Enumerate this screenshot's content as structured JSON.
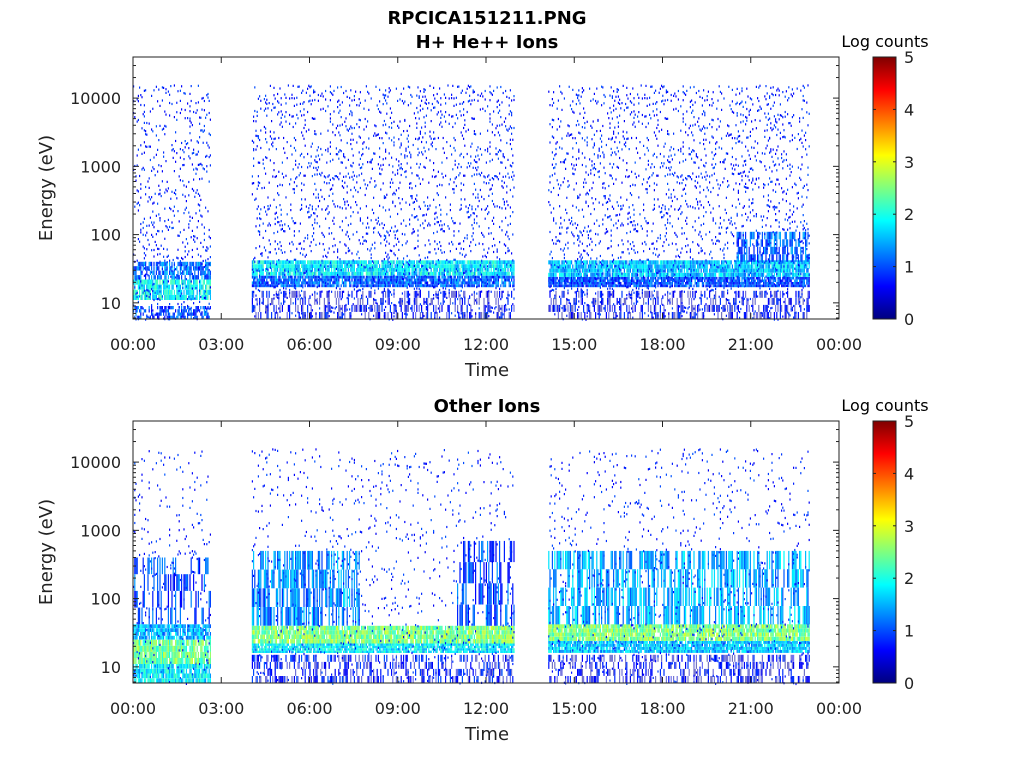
{
  "figure": {
    "title": "RPCICA151211.PNG"
  },
  "colors": {
    "colormap": [
      "#00007f",
      "#0000ff",
      "#007fff",
      "#00ffff",
      "#7fff7f",
      "#ffff00",
      "#ff7f00",
      "#ff0000",
      "#7f0000"
    ]
  },
  "chart_data": [
    {
      "type": "heatmap",
      "title": "H+ He++ Ions",
      "xlabel": "Time",
      "ylabel": "Energy (eV)",
      "xticks": [
        "00:00",
        "03:00",
        "06:00",
        "09:00",
        "12:00",
        "15:00",
        "18:00",
        "21:00",
        "00:00"
      ],
      "xlim_hours": [
        0,
        24
      ],
      "yticks": [
        "10",
        "100",
        "1000",
        "10000"
      ],
      "yscale": "log",
      "ylim_eV": [
        5.8,
        40000
      ],
      "colorbar": {
        "label": "Log counts",
        "ticks": [
          "0",
          "1",
          "2",
          "3",
          "4",
          "5"
        ],
        "range": [
          0,
          5
        ]
      },
      "data_gaps_hours": [
        [
          2.65,
          4.0
        ],
        [
          12.95,
          14.1
        ]
      ],
      "data_end_hour": 23.0,
      "bands": [
        {
          "t": [
            0.0,
            2.65
          ],
          "e": [
            5.8,
            9
          ],
          "level": 1.0,
          "density": 0.55
        },
        {
          "t": [
            0.0,
            2.65
          ],
          "e": [
            11,
            22
          ],
          "level": 1.9,
          "density": 0.8
        },
        {
          "t": [
            0.0,
            2.65
          ],
          "e": [
            22,
            40
          ],
          "level": 1.2,
          "density": 0.7
        },
        {
          "t": [
            4.0,
            12.95
          ],
          "e": [
            5.8,
            15
          ],
          "level": 0.5,
          "density": 0.35
        },
        {
          "t": [
            4.0,
            12.95
          ],
          "e": [
            17,
            25
          ],
          "level": 1.1,
          "density": 0.85
        },
        {
          "t": [
            4.0,
            12.95
          ],
          "e": [
            25,
            42
          ],
          "level": 1.8,
          "density": 0.9
        },
        {
          "t": [
            14.1,
            23.0
          ],
          "e": [
            5.8,
            15
          ],
          "level": 0.5,
          "density": 0.35
        },
        {
          "t": [
            14.1,
            23.0
          ],
          "e": [
            17,
            24
          ],
          "level": 1.0,
          "density": 0.85
        },
        {
          "t": [
            14.1,
            23.0
          ],
          "e": [
            24,
            42
          ],
          "level": 1.6,
          "density": 0.9
        },
        {
          "t": [
            20.5,
            23.0
          ],
          "e": [
            40,
            110
          ],
          "level": 1.1,
          "density": 0.55
        }
      ],
      "scatter_level": 0.8,
      "scatter_density": 0.22,
      "scatter_emax": 16000
    },
    {
      "type": "heatmap",
      "title": "Other Ions",
      "xlabel": "Time",
      "ylabel": "Energy (eV)",
      "xticks": [
        "00:00",
        "03:00",
        "06:00",
        "09:00",
        "12:00",
        "15:00",
        "18:00",
        "21:00",
        "00:00"
      ],
      "xlim_hours": [
        0,
        24
      ],
      "yticks": [
        "10",
        "100",
        "1000",
        "10000"
      ],
      "yscale": "log",
      "ylim_eV": [
        5.8,
        40000
      ],
      "colorbar": {
        "label": "Log counts",
        "ticks": [
          "0",
          "1",
          "2",
          "3",
          "4",
          "5"
        ],
        "range": [
          0,
          5
        ]
      },
      "data_gaps_hours": [
        [
          2.65,
          4.0
        ],
        [
          12.95,
          14.1
        ]
      ],
      "data_end_hour": 23.0,
      "bands": [
        {
          "t": [
            0.0,
            2.65
          ],
          "e": [
            5.8,
            11
          ],
          "level": 1.8,
          "density": 0.85
        },
        {
          "t": [
            0.0,
            2.65
          ],
          "e": [
            11,
            25
          ],
          "level": 2.4,
          "density": 0.9
        },
        {
          "t": [
            0.0,
            2.65
          ],
          "e": [
            25,
            42
          ],
          "level": 1.5,
          "density": 0.85
        },
        {
          "t": [
            0.0,
            2.65
          ],
          "e": [
            42,
            400
          ],
          "level": 1.0,
          "density": 0.3
        },
        {
          "t": [
            4.0,
            12.95
          ],
          "e": [
            5.8,
            15
          ],
          "level": 0.6,
          "density": 0.4
        },
        {
          "t": [
            4.0,
            12.95
          ],
          "e": [
            16,
            22
          ],
          "level": 1.8,
          "density": 0.9
        },
        {
          "t": [
            4.0,
            12.95
          ],
          "e": [
            22,
            40
          ],
          "level": 2.5,
          "density": 0.9
        },
        {
          "t": [
            4.0,
            7.7
          ],
          "e": [
            40,
            500
          ],
          "level": 1.3,
          "density": 0.55
        },
        {
          "t": [
            11.0,
            12.95
          ],
          "e": [
            40,
            700
          ],
          "level": 1.0,
          "density": 0.4
        },
        {
          "t": [
            14.1,
            23.0
          ],
          "e": [
            5.8,
            15
          ],
          "level": 0.5,
          "density": 0.35
        },
        {
          "t": [
            14.1,
            23.0
          ],
          "e": [
            16,
            24
          ],
          "level": 1.6,
          "density": 0.9
        },
        {
          "t": [
            14.1,
            23.0
          ],
          "e": [
            24,
            42
          ],
          "level": 2.5,
          "density": 0.9
        },
        {
          "t": [
            14.1,
            23.0
          ],
          "e": [
            42,
            500
          ],
          "level": 1.5,
          "density": 0.5
        }
      ],
      "scatter_level": 0.8,
      "scatter_density": 0.09,
      "scatter_emax": 16000
    }
  ]
}
